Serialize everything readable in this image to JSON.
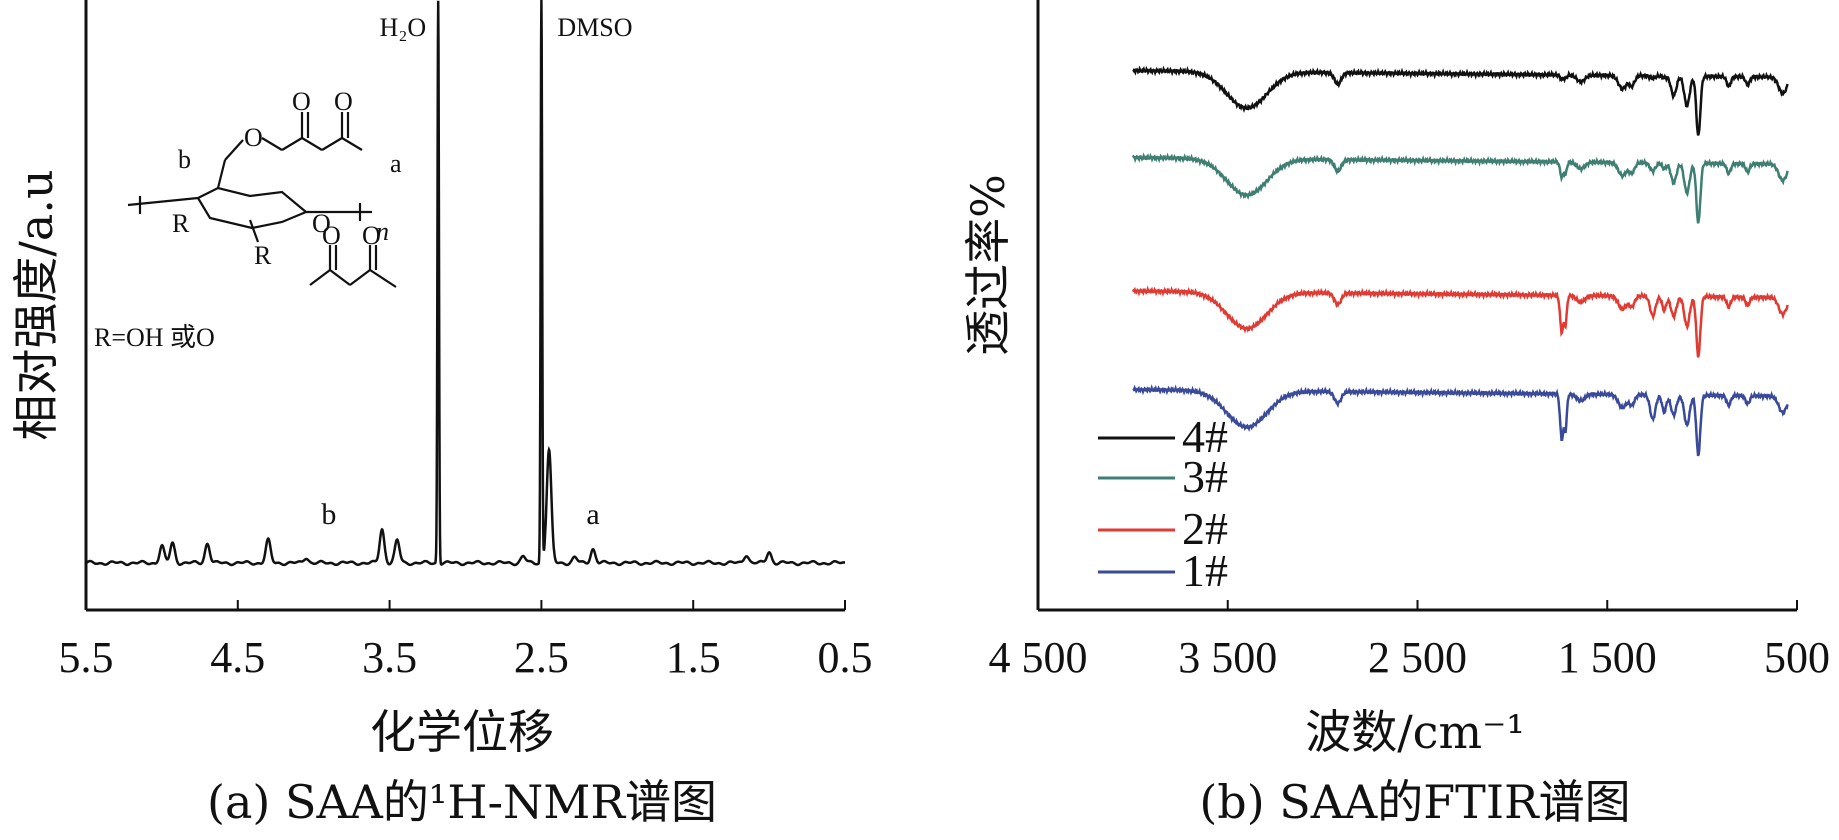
{
  "chart_data": [
    {
      "type": "line",
      "caption": "(a) SAA的¹H-NMR谱图",
      "xlabel": "化学位移",
      "ylabel": "相对强度/a.u",
      "xlim": [
        5.5,
        0.5
      ],
      "xticks": [
        "5.5",
        "4.5",
        "3.5",
        "2.5",
        "1.5",
        "0.5"
      ],
      "peaks": [
        {
          "x": 5.0,
          "h": 0.03
        },
        {
          "x": 4.93,
          "h": 0.035
        },
        {
          "x": 4.7,
          "h": 0.035
        },
        {
          "x": 4.3,
          "h": 0.04
        },
        {
          "x": 4.05,
          "h": 0.01
        },
        {
          "x": 3.55,
          "h": 0.06
        },
        {
          "x": 3.45,
          "h": 0.04
        },
        {
          "x": 3.18,
          "h": 1.0
        },
        {
          "x": 2.62,
          "h": 0.012
        },
        {
          "x": 2.5,
          "h": 1.0
        },
        {
          "x": 2.45,
          "h": 0.2
        },
        {
          "x": 2.28,
          "h": 0.01
        },
        {
          "x": 2.16,
          "h": 0.025
        },
        {
          "x": 1.15,
          "h": 0.015
        },
        {
          "x": 1.0,
          "h": 0.02
        }
      ],
      "annotations": [
        {
          "text": "H₂O",
          "x": 3.18
        },
        {
          "text": "DMSO",
          "x": 2.5
        },
        {
          "text": "b",
          "x": 3.9
        },
        {
          "text": "a",
          "x": 2.16
        }
      ],
      "structure_labels": {
        "carbonyl_o": "O",
        "a": "a",
        "b": "b",
        "r": "R",
        "ring_o": "O",
        "n": "n",
        "r_def": "R=OH 或O"
      }
    },
    {
      "type": "line",
      "caption": "(b) SAA的FTIR谱图",
      "xlabel": "波数/cm⁻¹",
      "ylabel": "透过率%",
      "xlim": [
        4500,
        500
      ],
      "xticks": [
        "4 500",
        "3 500",
        "2 500",
        "1 500",
        "500"
      ],
      "legend_position": "bottom-left",
      "series": [
        {
          "name": "4#",
          "color": "#111111",
          "offset": 0.93
        },
        {
          "name": "3#",
          "color": "#3f7f73",
          "offset": 0.78
        },
        {
          "name": "2#",
          "color": "#e03a33",
          "offset": 0.55
        },
        {
          "name": "1#",
          "color": "#3a4a9a",
          "offset": 0.38
        }
      ]
    }
  ]
}
